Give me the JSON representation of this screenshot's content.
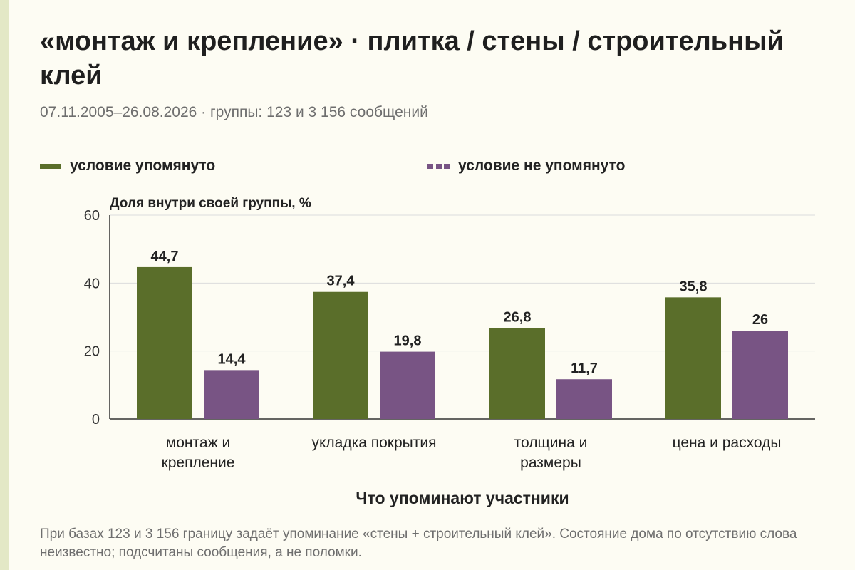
{
  "title": "«монтаж и крепление» · плитка / стены / строительный клей",
  "subtitle": "07.11.2005–26.08.2026 · группы: 123 и 3 156 сообщений",
  "footnote": "При базах 123 и 3 156 границу задаёт упоминание «стены + строительный клей». Состояние дома по отсутствию слова неизвестно; подсчитаны сообщения, а не поломки.",
  "colors": {
    "mentioned": "#5a6e2a",
    "not_mentioned": "#785484",
    "grid": "#dcdcdc",
    "axis": "#333333",
    "background": "#fdfcf3"
  },
  "chart_data": {
    "type": "bar",
    "categories": [
      [
        "монтаж и",
        "крепление"
      ],
      [
        "укладка покрытия"
      ],
      [
        "толщина и",
        "размеры"
      ],
      [
        "цена и расходы"
      ]
    ],
    "series": [
      {
        "name": "условие упомянуто",
        "values": [
          44.7,
          37.4,
          26.8,
          35.8
        ],
        "labels": [
          "44,7",
          "37,4",
          "26,8",
          "35,8"
        ]
      },
      {
        "name": "условие не упомянуто",
        "values": [
          14.4,
          19.8,
          11.7,
          26
        ],
        "labels": [
          "14,4",
          "19,8",
          "11,7",
          "26"
        ]
      }
    ],
    "ylabel": "Доля внутри своей группы, %",
    "xlabel": "Что упоминают участники",
    "ylim": [
      0,
      60
    ],
    "yticks": [
      0,
      20,
      40,
      60
    ],
    "grid": true,
    "legend_position": "top"
  }
}
